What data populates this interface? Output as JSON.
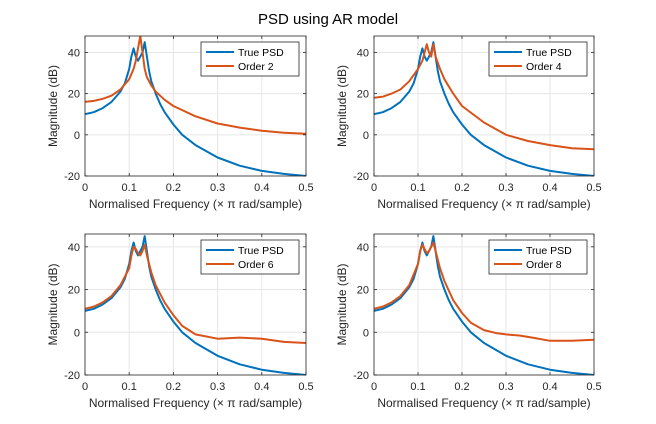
{
  "title": "PSD using AR model",
  "colors": {
    "true_psd": "#0072BD",
    "model": "#D95319",
    "grid": "#e6e6e6",
    "axis": "#262626"
  },
  "chart_data": [
    {
      "type": "line",
      "xlabel": "Normalised Frequency (× π rad/sample)",
      "ylabel": "Magnitude (dB)",
      "xlim": [
        0,
        0.5
      ],
      "ylim": [
        -20,
        48
      ],
      "xticks": [
        "0",
        "0.1",
        "0.2",
        "0.3",
        "0.4",
        "0.5"
      ],
      "yticks": [
        "-20",
        "0",
        "20",
        "40"
      ],
      "grid": true,
      "legend_position": "top-right",
      "series": [
        {
          "name": "True PSD",
          "color": "#0072BD",
          "x": [
            0,
            0.02,
            0.04,
            0.06,
            0.08,
            0.09,
            0.1,
            0.105,
            0.11,
            0.115,
            0.12,
            0.125,
            0.13,
            0.135,
            0.14,
            0.145,
            0.15,
            0.16,
            0.17,
            0.18,
            0.2,
            0.22,
            0.25,
            0.3,
            0.35,
            0.4,
            0.45,
            0.5
          ],
          "y": [
            10,
            11,
            13,
            16,
            21,
            25,
            32,
            38,
            42,
            38,
            36,
            38,
            40,
            45,
            38,
            31,
            26,
            20,
            15,
            11,
            5,
            0,
            -5,
            -11,
            -15,
            -17.5,
            -19,
            -20
          ]
        },
        {
          "name": "Order 2",
          "color": "#D95319",
          "x": [
            0,
            0.02,
            0.04,
            0.06,
            0.08,
            0.1,
            0.11,
            0.115,
            0.12,
            0.125,
            0.13,
            0.135,
            0.14,
            0.15,
            0.16,
            0.18,
            0.2,
            0.25,
            0.3,
            0.35,
            0.4,
            0.45,
            0.5
          ],
          "y": [
            16,
            16.5,
            17.5,
            19,
            22,
            27,
            32,
            36,
            42,
            48,
            40,
            32,
            28,
            24,
            21,
            17,
            14,
            9,
            5.5,
            3.5,
            2,
            1,
            0.5
          ]
        }
      ]
    },
    {
      "type": "line",
      "xlabel": "Normalised Frequency (× π rad/sample)",
      "ylabel": "Magnitude (dB)",
      "xlim": [
        0,
        0.5
      ],
      "ylim": [
        -20,
        48
      ],
      "xticks": [
        "0",
        "0.1",
        "0.2",
        "0.3",
        "0.4",
        "0.5"
      ],
      "yticks": [
        "-20",
        "0",
        "20",
        "40"
      ],
      "grid": true,
      "legend_position": "top-right",
      "series": [
        {
          "name": "True PSD",
          "color": "#0072BD",
          "x": [
            0,
            0.02,
            0.04,
            0.06,
            0.08,
            0.09,
            0.1,
            0.105,
            0.11,
            0.115,
            0.12,
            0.125,
            0.13,
            0.135,
            0.14,
            0.145,
            0.15,
            0.16,
            0.17,
            0.18,
            0.2,
            0.22,
            0.25,
            0.3,
            0.35,
            0.4,
            0.45,
            0.5
          ],
          "y": [
            10,
            11,
            13,
            16,
            21,
            25,
            32,
            38,
            42,
            38,
            36,
            38,
            40,
            45,
            38,
            31,
            26,
            20,
            15,
            11,
            5,
            0,
            -5,
            -11,
            -15,
            -17.5,
            -19,
            -20
          ]
        },
        {
          "name": "Order 4",
          "color": "#D95319",
          "x": [
            0,
            0.02,
            0.04,
            0.06,
            0.08,
            0.1,
            0.11,
            0.115,
            0.12,
            0.125,
            0.13,
            0.135,
            0.14,
            0.15,
            0.16,
            0.18,
            0.2,
            0.25,
            0.3,
            0.35,
            0.4,
            0.45,
            0.5
          ],
          "y": [
            18,
            18.5,
            20,
            22,
            26,
            32,
            36,
            40,
            44,
            40,
            38,
            44,
            38,
            32,
            27,
            20,
            14,
            6,
            0,
            -3,
            -5,
            -6.5,
            -7
          ]
        }
      ]
    },
    {
      "type": "line",
      "xlabel": "Normalised Frequency (× π rad/sample)",
      "ylabel": "Magnitude (dB)",
      "xlim": [
        0,
        0.5
      ],
      "ylim": [
        -20,
        46
      ],
      "xticks": [
        "0",
        "0.1",
        "0.2",
        "0.3",
        "0.4",
        "0.5"
      ],
      "yticks": [
        "-20",
        "0",
        "20",
        "40"
      ],
      "grid": true,
      "legend_position": "top-right",
      "series": [
        {
          "name": "True PSD",
          "color": "#0072BD",
          "x": [
            0,
            0.02,
            0.04,
            0.06,
            0.08,
            0.09,
            0.1,
            0.105,
            0.11,
            0.115,
            0.12,
            0.125,
            0.13,
            0.135,
            0.14,
            0.145,
            0.15,
            0.16,
            0.17,
            0.18,
            0.2,
            0.22,
            0.25,
            0.3,
            0.35,
            0.4,
            0.45,
            0.5
          ],
          "y": [
            10,
            11,
            13,
            16,
            21,
            25,
            32,
            38,
            42,
            38,
            36,
            38,
            40,
            45,
            38,
            31,
            26,
            20,
            15,
            11,
            5,
            0,
            -5,
            -11,
            -15,
            -17.5,
            -19,
            -20
          ]
        },
        {
          "name": "Order 6",
          "color": "#D95319",
          "x": [
            0,
            0.02,
            0.04,
            0.06,
            0.08,
            0.1,
            0.105,
            0.11,
            0.115,
            0.12,
            0.125,
            0.13,
            0.135,
            0.14,
            0.15,
            0.16,
            0.18,
            0.2,
            0.22,
            0.25,
            0.3,
            0.35,
            0.4,
            0.45,
            0.5
          ],
          "y": [
            11,
            12,
            14,
            17,
            22,
            30,
            36,
            40,
            39,
            37,
            36,
            38,
            41,
            36,
            28,
            22,
            14,
            8,
            3,
            -1,
            -3,
            -2.5,
            -3,
            -4.5,
            -5
          ]
        }
      ]
    },
    {
      "type": "line",
      "xlabel": "Normalised Frequency (× π rad/sample)",
      "ylabel": "Magnitude (dB)",
      "xlim": [
        0,
        0.5
      ],
      "ylim": [
        -20,
        46
      ],
      "xticks": [
        "0",
        "0.1",
        "0.2",
        "0.3",
        "0.4",
        "0.5"
      ],
      "yticks": [
        "-20",
        "0",
        "20",
        "40"
      ],
      "grid": true,
      "legend_position": "top-right",
      "series": [
        {
          "name": "True PSD",
          "color": "#0072BD",
          "x": [
            0,
            0.02,
            0.04,
            0.06,
            0.08,
            0.09,
            0.1,
            0.105,
            0.11,
            0.115,
            0.12,
            0.125,
            0.13,
            0.135,
            0.14,
            0.145,
            0.15,
            0.16,
            0.17,
            0.18,
            0.2,
            0.22,
            0.25,
            0.3,
            0.35,
            0.4,
            0.45,
            0.5
          ],
          "y": [
            10,
            11,
            13,
            16,
            21,
            25,
            32,
            38,
            42,
            38,
            36,
            38,
            40,
            45,
            38,
            31,
            26,
            20,
            15,
            11,
            5,
            0,
            -5,
            -11,
            -15,
            -17.5,
            -19,
            -20
          ]
        },
        {
          "name": "Order 8",
          "color": "#D95319",
          "x": [
            0,
            0.02,
            0.04,
            0.06,
            0.08,
            0.1,
            0.105,
            0.11,
            0.115,
            0.12,
            0.125,
            0.13,
            0.135,
            0.14,
            0.15,
            0.16,
            0.18,
            0.2,
            0.22,
            0.25,
            0.28,
            0.3,
            0.33,
            0.36,
            0.4,
            0.45,
            0.5
          ],
          "y": [
            11,
            12,
            14,
            17,
            22,
            32,
            38,
            41,
            39,
            37,
            38,
            40,
            42,
            38,
            30,
            24,
            15,
            9,
            4.5,
            1,
            -0.5,
            -1,
            -1.5,
            -2.5,
            -4,
            -4,
            -3.5
          ]
        }
      ]
    }
  ]
}
